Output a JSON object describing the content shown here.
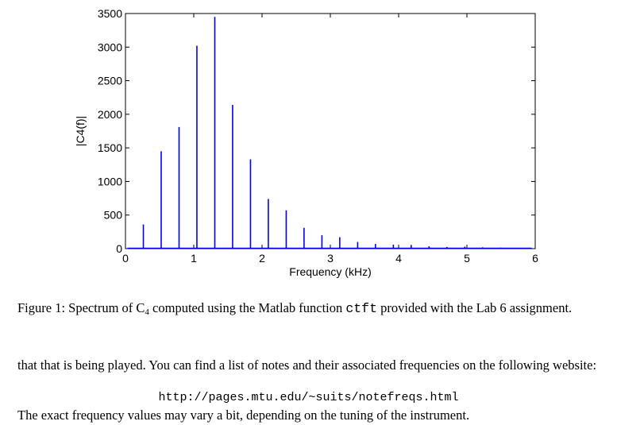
{
  "chart_data": {
    "type": "line",
    "xlabel": "Frequency (kHz)",
    "ylabel": "|C4(f)|",
    "xlim": [
      0,
      6
    ],
    "ylim": [
      0,
      3500
    ],
    "xticks": [
      "0",
      "1",
      "2",
      "3",
      "4",
      "5",
      "6"
    ],
    "yticks": [
      "0",
      "500",
      "1000",
      "1500",
      "2000",
      "2500",
      "3000",
      "3500"
    ],
    "grid": false,
    "color": "#0000ff",
    "peaks": {
      "x": [
        0.262,
        0.523,
        0.785,
        1.046,
        1.308,
        1.569,
        1.831,
        2.092,
        2.354,
        2.615,
        2.877,
        3.138,
        3.4,
        3.661,
        3.923,
        4.184,
        4.446,
        4.707,
        4.969,
        5.23,
        5.492,
        5.753
      ],
      "y": [
        360,
        1450,
        1810,
        3020,
        3450,
        2140,
        1330,
        740,
        570,
        310,
        200,
        170,
        100,
        70,
        60,
        55,
        35,
        25,
        30,
        20,
        15,
        12
      ]
    }
  },
  "caption": {
    "label": "Figure 1:",
    "text_before": "Spectrum of C",
    "subscript": "4",
    "text_middle": "computed using the Matlab function",
    "code": "ctft",
    "text_after": "provided with the Lab 6 assignment."
  },
  "body": {
    "paragraph": "that that is being played. You can find a list of notes and their associated frequencies on the following website:",
    "url": "http://pages.mtu.edu/~suits/notefreqs.html",
    "last": "The exact frequency values may vary a bit, depending on the tuning of the instrument."
  }
}
